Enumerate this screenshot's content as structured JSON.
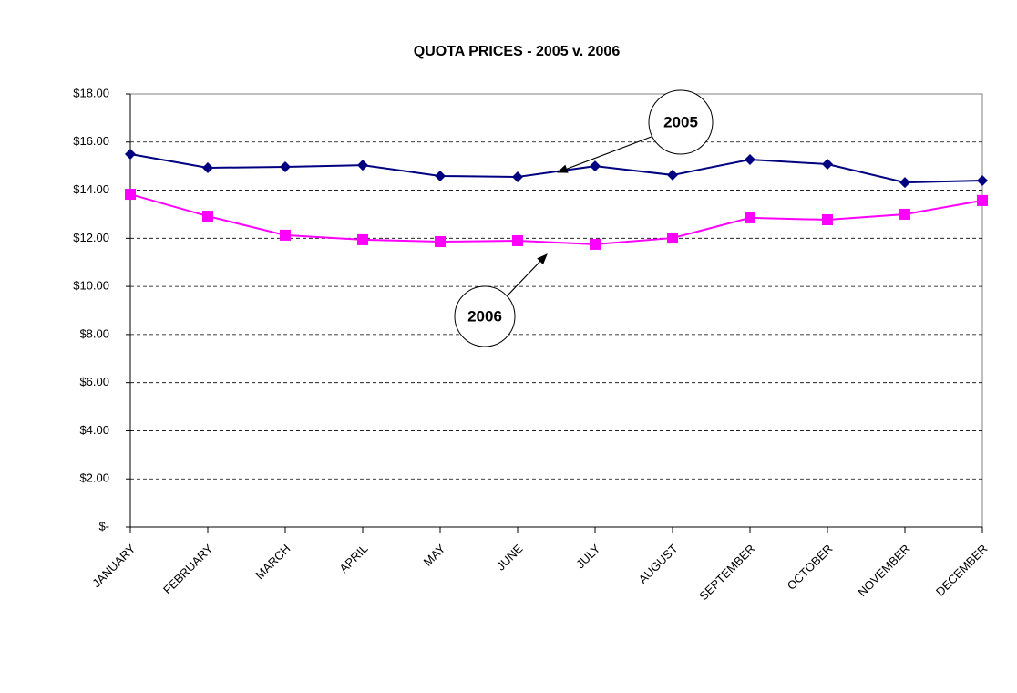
{
  "chart_data": {
    "type": "line",
    "title": "QUOTA PRICES - 2005 v. 2006",
    "categories": [
      "JANUARY",
      "FEBRUARY",
      "MARCH",
      "APRIL",
      "MAY",
      "JUNE",
      "JULY",
      "AUGUST",
      "SEPTEMBER",
      "OCTOBER",
      "NOVEMBER",
      "DECEMBER"
    ],
    "series": [
      {
        "name": "2005",
        "color": "#000080",
        "marker": "diamond",
        "values": [
          15.5,
          14.93,
          14.97,
          15.04,
          14.59,
          14.55,
          15.0,
          14.63,
          15.27,
          15.08,
          14.32,
          14.4
        ]
      },
      {
        "name": "2006",
        "color": "#ff00ff",
        "marker": "square",
        "values": [
          13.83,
          12.92,
          12.13,
          11.94,
          11.86,
          11.9,
          11.75,
          12.01,
          12.85,
          12.77,
          13.0,
          13.57
        ]
      }
    ],
    "ylim": [
      0,
      18
    ],
    "yticks": [
      {
        "value": 0,
        "label": "$-"
      },
      {
        "value": 2,
        "label": "$2.00"
      },
      {
        "value": 4,
        "label": "$4.00"
      },
      {
        "value": 6,
        "label": "$6.00"
      },
      {
        "value": 8,
        "label": "$8.00"
      },
      {
        "value": 10,
        "label": "$10.00"
      },
      {
        "value": 12,
        "label": "$12.00"
      },
      {
        "value": 14,
        "label": "$14.00"
      },
      {
        "value": 16,
        "label": "$16.00"
      },
      {
        "value": 18,
        "label": "$18.00"
      }
    ],
    "grid": true,
    "annotations": [
      "2005",
      "2006"
    ]
  }
}
